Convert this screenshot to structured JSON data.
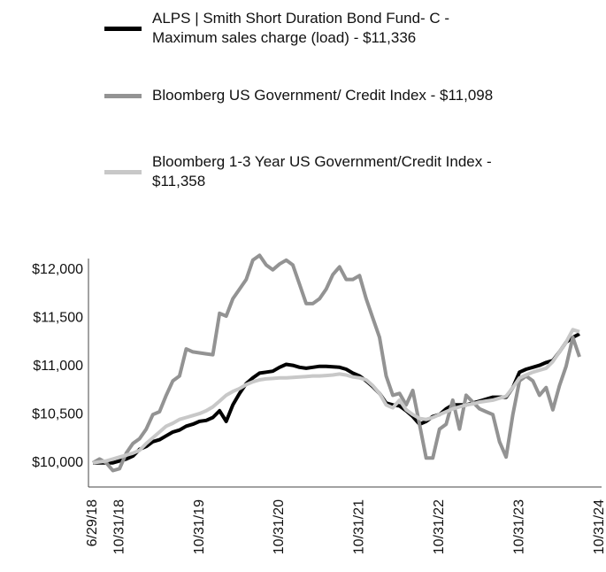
{
  "chart_data": {
    "type": "line",
    "categories": [
      "6/29/18",
      null,
      null,
      null,
      "10/31/18",
      null,
      null,
      null,
      null,
      null,
      null,
      null,
      null,
      null,
      null,
      null,
      "10/31/19",
      null,
      null,
      null,
      null,
      null,
      null,
      null,
      null,
      null,
      null,
      null,
      "10/31/20",
      null,
      null,
      null,
      null,
      null,
      null,
      null,
      null,
      null,
      null,
      null,
      "10/31/21",
      null,
      null,
      null,
      null,
      null,
      null,
      null,
      null,
      null,
      null,
      null,
      "10/31/22",
      null,
      null,
      null,
      null,
      null,
      null,
      null,
      null,
      null,
      null,
      null,
      "10/31/23",
      null,
      null,
      null,
      null,
      null,
      null,
      null,
      null,
      null,
      null,
      null,
      "10/31/24"
    ],
    "series": [
      {
        "name": "ALPS | Smith Short Duration Bond Fund- C - Maximum sales charge (load) - $11,336",
        "color": "#000000",
        "values": [
          10000,
          10000,
          10000,
          10000,
          10020,
          10040,
          10070,
          10140,
          10170,
          10220,
          10240,
          10280,
          10320,
          10340,
          10380,
          10400,
          10430,
          10440,
          10470,
          10540,
          10430,
          10600,
          10720,
          10820,
          10880,
          10930,
          10940,
          10950,
          10990,
          11020,
          11010,
          10990,
          10980,
          10990,
          11000,
          11000,
          10995,
          10990,
          10970,
          10930,
          10900,
          10850,
          10790,
          10720,
          10620,
          10600,
          10590,
          10540,
          10480,
          10400,
          10430,
          10480,
          10500,
          10560,
          10600,
          10600,
          10600,
          10620,
          10640,
          10660,
          10680,
          10680,
          10680,
          10780,
          10940,
          10970,
          10990,
          11010,
          11040,
          11060,
          11150,
          11250,
          11300,
          11336,
          null,
          null,
          null
        ]
      },
      {
        "name": "Bloomberg US Government/ Credit Index - $11,098",
        "color": "#939393",
        "values": [
          10000,
          10040,
          10000,
          9920,
          9940,
          10100,
          10200,
          10250,
          10350,
          10500,
          10530,
          10700,
          10850,
          10900,
          11180,
          11150,
          11140,
          11130,
          11120,
          11550,
          11520,
          11700,
          11800,
          11900,
          12100,
          12150,
          12050,
          12000,
          12060,
          12100,
          12050,
          11850,
          11650,
          11650,
          11700,
          11800,
          11950,
          12030,
          11900,
          11900,
          11940,
          11700,
          11500,
          11300,
          10900,
          10700,
          10720,
          10600,
          10750,
          10400,
          10050,
          10050,
          10350,
          10400,
          10650,
          10350,
          10700,
          10630,
          10560,
          10530,
          10500,
          10220,
          10060,
          10500,
          10850,
          10900,
          10850,
          10700,
          10780,
          10550,
          10800,
          11000,
          11300,
          11098,
          null,
          null,
          null
        ]
      },
      {
        "name": "Bloomberg 1-3 Year US Government/Credit Index - $11,358",
        "color": "#c8c8c8",
        "values": [
          10000,
          10010,
          10020,
          10040,
          10060,
          10080,
          10100,
          10130,
          10200,
          10260,
          10320,
          10380,
          10410,
          10450,
          10470,
          10490,
          10510,
          10540,
          10580,
          10640,
          10700,
          10740,
          10770,
          10810,
          10840,
          10860,
          10870,
          10875,
          10880,
          10880,
          10885,
          10890,
          10895,
          10900,
          10900,
          10905,
          10910,
          10920,
          10910,
          10890,
          10880,
          10860,
          10800,
          10720,
          10600,
          10570,
          10650,
          10550,
          10500,
          10460,
          10450,
          10470,
          10500,
          10530,
          10560,
          10580,
          10600,
          10610,
          10630,
          10640,
          10650,
          10670,
          10690,
          10780,
          10880,
          10910,
          10940,
          10960,
          10980,
          11050,
          11150,
          11250,
          11380,
          11358,
          null,
          null,
          null
        ]
      }
    ],
    "ylim": [
      9750,
      12300
    ],
    "yticks": [
      {
        "value": 10000,
        "label": "$10,000"
      },
      {
        "value": 10500,
        "label": "$10,500"
      },
      {
        "value": 11000,
        "label": "$11,000"
      },
      {
        "value": 11500,
        "label": "$11,500"
      },
      {
        "value": 12000,
        "label": "$12,000"
      }
    ],
    "grid": false
  }
}
